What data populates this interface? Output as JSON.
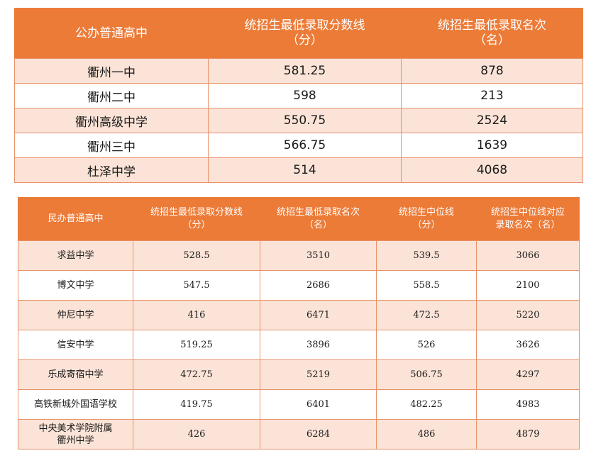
{
  "public_schools": {
    "headers": {
      "school": "公办普通高中",
      "min_score_line1": "统招生最低录取分数线",
      "min_score_line2": "（分）",
      "min_rank_line1": "统招生最低录取名次",
      "min_rank_line2": "（名）"
    },
    "rows": [
      {
        "school": "衢州一中",
        "min_score": "581.25",
        "min_rank": "878"
      },
      {
        "school": "衢州二中",
        "min_score": "598",
        "min_rank": "213"
      },
      {
        "school": "衢州高级中学",
        "min_score": "550.75",
        "min_rank": "2524"
      },
      {
        "school": "衢州三中",
        "min_score": "566.75",
        "min_rank": "1639"
      },
      {
        "school": "杜泽中学",
        "min_score": "514",
        "min_rank": "4068"
      }
    ]
  },
  "private_schools": {
    "headers": {
      "school": "民办普通高中",
      "min_score_line1": "统招生最低录取分数线",
      "min_score_line2": "（分）",
      "min_rank_line1": "统招生最低录取名次",
      "min_rank_line2": "（名）",
      "median_line1": "统招生中位线",
      "median_line2": "（分）",
      "median_rank_line1": "统招生中位线对应",
      "median_rank_line2": "录取名次（名）"
    },
    "rows": [
      {
        "school_line1": "求益中学",
        "school_line2": "",
        "min_score": "528.5",
        "min_rank": "3510",
        "median": "539.5",
        "median_rank": "3066"
      },
      {
        "school_line1": "博文中学",
        "school_line2": "",
        "min_score": "547.5",
        "min_rank": "2686",
        "median": "558.5",
        "median_rank": "2100"
      },
      {
        "school_line1": "仲尼中学",
        "school_line2": "",
        "min_score": "416",
        "min_rank": "6471",
        "median": "472.5",
        "median_rank": "5220"
      },
      {
        "school_line1": "信安中学",
        "school_line2": "",
        "min_score": "519.25",
        "min_rank": "3896",
        "median": "526",
        "median_rank": "3626"
      },
      {
        "school_line1": "乐成寄宿中学",
        "school_line2": "",
        "min_score": "472.75",
        "min_rank": "5219",
        "median": "506.75",
        "median_rank": "4297"
      },
      {
        "school_line1": "高铁新城外国语学校",
        "school_line2": "",
        "min_score": "419.75",
        "min_rank": "6401",
        "median": "482.25",
        "median_rank": "4983"
      },
      {
        "school_line1": "中央美术学院附属",
        "school_line2": "衢州中学",
        "min_score": "426",
        "min_rank": "6284",
        "median": "486",
        "median_rank": "4879"
      }
    ]
  }
}
